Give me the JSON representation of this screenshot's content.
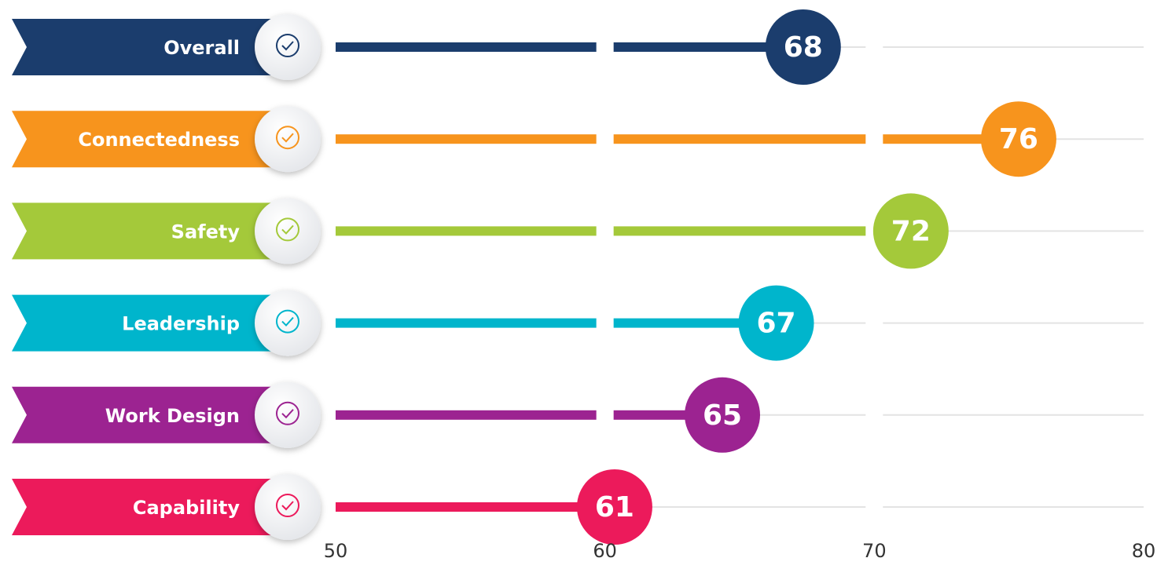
{
  "chart_data": {
    "type": "lollipop",
    "categories": [
      "Overall",
      "Connectedness",
      "Safety",
      "Leadership",
      "Work Design",
      "Capability"
    ],
    "values": [
      68,
      76,
      72,
      67,
      65,
      61
    ],
    "colors": [
      "#1b3d6d",
      "#f7941d",
      "#a4c93a",
      "#00b5cc",
      "#9c2391",
      "#ec1a5b"
    ],
    "xlim": [
      50,
      80
    ],
    "xticks": [
      50,
      60,
      70,
      80
    ],
    "grid": true
  }
}
